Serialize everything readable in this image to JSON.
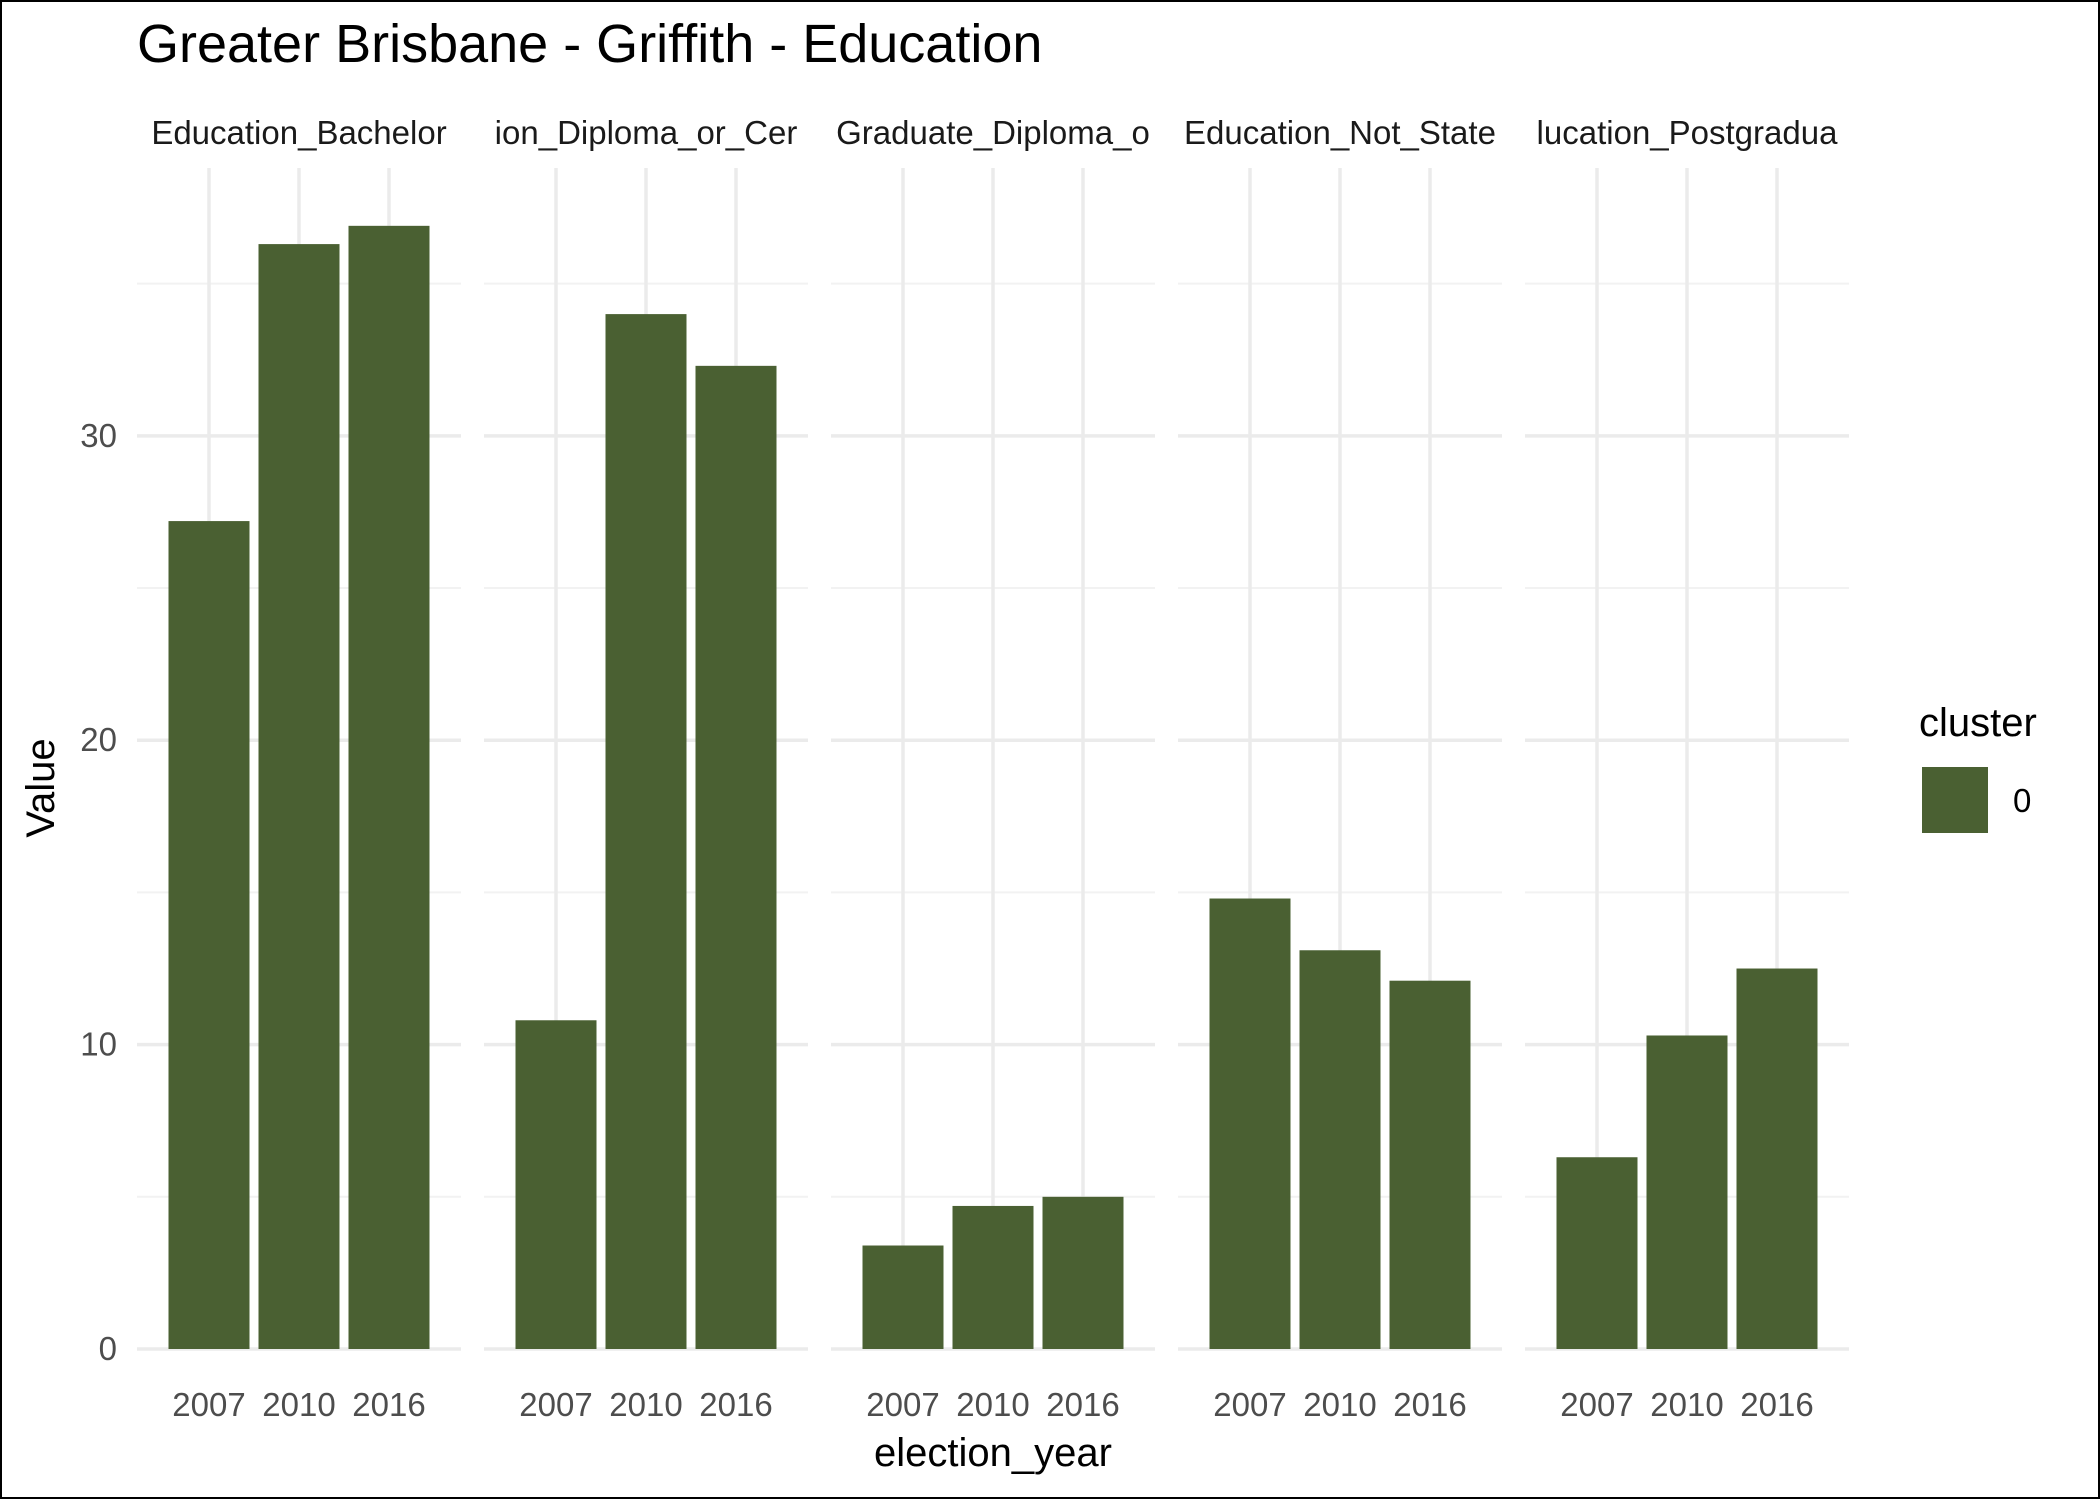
{
  "chart_data": {
    "type": "bar",
    "title": "Greater Brisbane - Griffith - Education",
    "xlabel": "election_year",
    "ylabel": "Value",
    "ylim": [
      0,
      38.8
    ],
    "yticks": [
      0,
      10,
      20,
      30
    ],
    "grid": true,
    "legend": {
      "title": "cluster",
      "placement": "right",
      "entries": [
        {
          "label": "0",
          "color": "#4a6032"
        }
      ]
    },
    "categories": [
      "2007",
      "2010",
      "2016"
    ],
    "facets": [
      {
        "label": "Education_Bachelor",
        "strip_text": "Education_Bachelor",
        "values": [
          27.2,
          36.3,
          36.9
        ]
      },
      {
        "label": "Education_Diploma_or_Certificate",
        "strip_text": "ion_Diploma_or_Cer",
        "values": [
          10.8,
          34.0,
          32.3
        ]
      },
      {
        "label": "Education_Graduate_Diploma_or_Certificate",
        "strip_text": "Graduate_Diploma_o",
        "values": [
          3.4,
          4.7,
          5.0
        ]
      },
      {
        "label": "Education_Not_Stated",
        "strip_text": "Education_Not_State",
        "values": [
          14.8,
          13.1,
          12.1
        ]
      },
      {
        "label": "Education_Postgraduate",
        "strip_text": "lucation_Postgradua",
        "values": [
          6.3,
          10.3,
          12.5
        ]
      }
    ]
  }
}
